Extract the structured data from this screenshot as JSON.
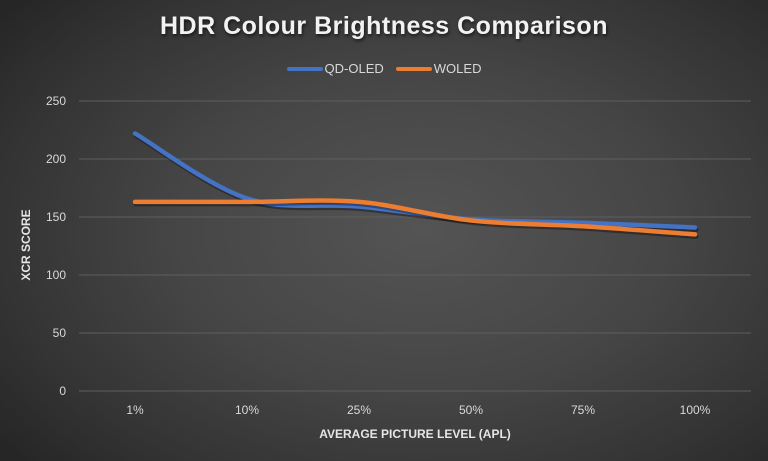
{
  "chart_data": {
    "type": "line",
    "title": "HDR Colour Brightness Comparison",
    "xlabel": "AVERAGE PICTURE LEVEL (APL)",
    "ylabel": "XCR SCORE",
    "categories": [
      "1%",
      "10%",
      "25%",
      "50%",
      "75%",
      "100%"
    ],
    "series": [
      {
        "name": "QD-OLED",
        "color": "#4472c4",
        "values": [
          222,
          166,
          159,
          148,
          145,
          141
        ]
      },
      {
        "name": "WOLED",
        "color": "#ed7d31",
        "values": [
          163,
          163,
          163,
          147,
          142,
          135
        ]
      }
    ],
    "ylim": [
      0,
      250
    ],
    "yticks": [
      0,
      50,
      100,
      150,
      200,
      250
    ],
    "grid": true,
    "legend_position": "top",
    "smooth": true
  },
  "colors": {
    "background_center": "#545454",
    "background_edge": "#262626",
    "gridline": "#5e5e5e",
    "text": "#d9d9d9"
  }
}
